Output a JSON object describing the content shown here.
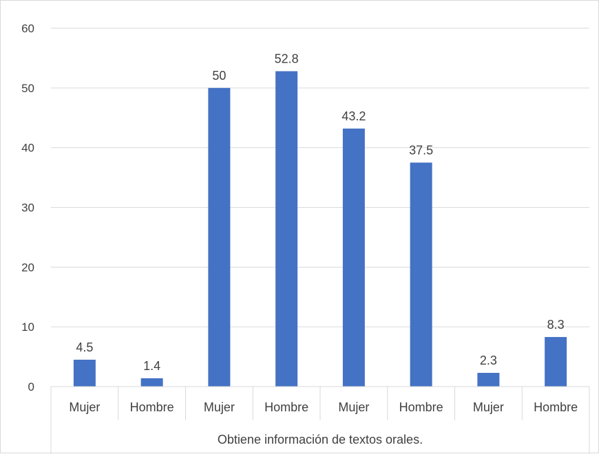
{
  "chart_data": {
    "type": "bar",
    "categories": [
      "Mujer",
      "Hombre",
      "Mujer",
      "Hombre",
      "Mujer",
      "Hombre",
      "Mujer",
      "Hombre"
    ],
    "values": [
      4.5,
      1.4,
      50,
      52.8,
      43.2,
      37.5,
      2.3,
      8.3
    ],
    "data_labels": [
      "4.5",
      "1.4",
      "50",
      "52.8",
      "43.2",
      "37.5",
      "2.3",
      "8.3"
    ],
    "group_label": "Obtiene información de textos orales.",
    "title": "",
    "xlabel": "",
    "ylabel": "",
    "ylim": [
      0,
      60
    ],
    "yticks": [
      0,
      10,
      20,
      30,
      40,
      50,
      60
    ],
    "ytick_labels": [
      "0",
      "10",
      "20",
      "30",
      "40",
      "50",
      "60"
    ],
    "grid": true,
    "legend": "none",
    "colors": {
      "bar": "#4472c4",
      "grid": "#d9d9d9",
      "text": "#404040"
    }
  }
}
